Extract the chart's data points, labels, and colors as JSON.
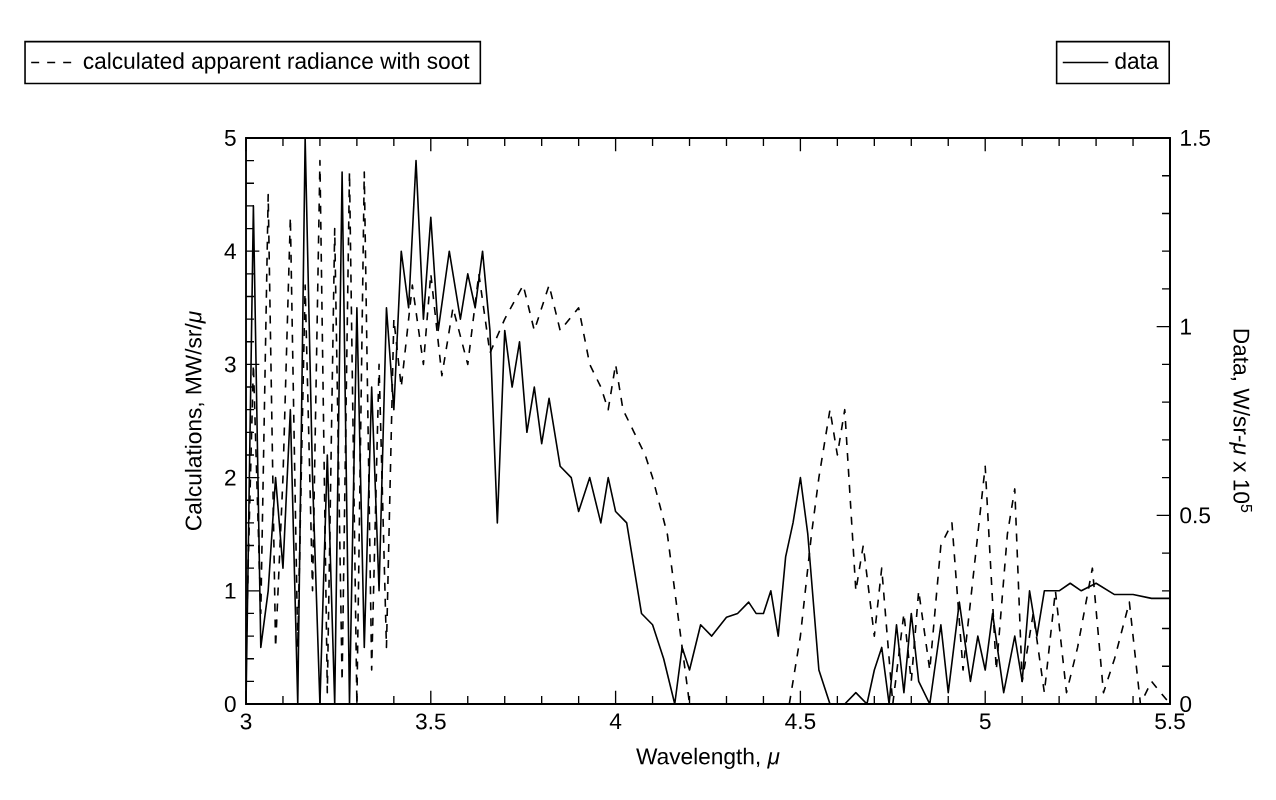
{
  "chart_data": {
    "type": "line",
    "xlabel": "Wavelength, *μ*",
    "ylabel": "Calculations,  MW/sr/*μ*",
    "y2label": "Data, W/sr-*μ* x 10$^{5}$",
    "xlim": [
      3,
      5.5
    ],
    "xticks": [
      3,
      3.5,
      4,
      4.5,
      5,
      5.5
    ],
    "ylim": [
      0,
      5
    ],
    "yticks": [
      0,
      1,
      2,
      3,
      4,
      5
    ],
    "y2lim": [
      0,
      1.5
    ],
    "y2ticks": [
      0,
      0.5,
      1,
      1.5
    ],
    "grid": false,
    "legend": "top",
    "marker": "none",
    "series": [
      {
        "name": "calculated apparent radiance with soot",
        "color": "#000000",
        "line_style": "dashed",
        "axis": "y",
        "x": [
          3.0,
          3.02,
          3.04,
          3.06,
          3.08,
          3.1,
          3.12,
          3.14,
          3.16,
          3.18,
          3.2,
          3.22,
          3.24,
          3.26,
          3.28,
          3.3,
          3.32,
          3.34,
          3.36,
          3.38,
          3.4,
          3.42,
          3.45,
          3.48,
          3.5,
          3.53,
          3.56,
          3.6,
          3.63,
          3.66,
          3.7,
          3.75,
          3.78,
          3.82,
          3.85,
          3.9,
          3.93,
          3.96,
          3.98,
          4.0,
          4.02,
          4.05,
          4.08,
          4.1,
          4.14,
          4.18,
          4.2,
          4.3,
          4.4,
          4.47,
          4.5,
          4.53,
          4.55,
          4.58,
          4.6,
          4.62,
          4.65,
          4.67,
          4.7,
          4.72,
          4.75,
          4.78,
          4.8,
          4.82,
          4.85,
          4.88,
          4.91,
          4.94,
          4.97,
          5.0,
          5.03,
          5.06,
          5.08,
          5.1,
          5.13,
          5.16,
          5.19,
          5.22,
          5.25,
          5.29,
          5.32,
          5.35,
          5.39,
          5.42,
          5.45,
          5.5
        ],
        "values": [
          0.5,
          3.0,
          0.8,
          4.5,
          0.5,
          2.0,
          4.3,
          0.5,
          3.7,
          1.0,
          4.8,
          0.1,
          4.2,
          0.2,
          4.7,
          0.0,
          4.7,
          0.3,
          3.0,
          0.5,
          3.4,
          2.8,
          3.7,
          3.0,
          3.8,
          2.9,
          3.5,
          3.0,
          3.8,
          3.1,
          3.4,
          3.7,
          3.3,
          3.7,
          3.3,
          3.5,
          3.0,
          2.8,
          2.6,
          3.0,
          2.6,
          2.4,
          2.2,
          2.0,
          1.5,
          0.5,
          0.0,
          0.0,
          0.0,
          0.0,
          0.6,
          1.5,
          2.0,
          2.6,
          2.2,
          2.6,
          1.0,
          1.4,
          0.6,
          1.2,
          0.0,
          0.8,
          0.2,
          1.0,
          0.3,
          1.4,
          1.6,
          0.3,
          1.2,
          2.1,
          0.3,
          1.5,
          1.9,
          0.2,
          0.8,
          0.1,
          1.0,
          0.1,
          0.5,
          1.2,
          0.1,
          0.4,
          0.9,
          0.0,
          0.2,
          0.0
        ]
      },
      {
        "name": "data",
        "color": "#000000",
        "line_style": "solid",
        "axis": "y2",
        "x": [
          3.0,
          3.02,
          3.04,
          3.06,
          3.08,
          3.1,
          3.12,
          3.14,
          3.16,
          3.18,
          3.2,
          3.22,
          3.24,
          3.26,
          3.28,
          3.3,
          3.32,
          3.34,
          3.36,
          3.38,
          3.4,
          3.42,
          3.44,
          3.46,
          3.48,
          3.5,
          3.52,
          3.55,
          3.58,
          3.6,
          3.62,
          3.64,
          3.66,
          3.68,
          3.7,
          3.72,
          3.74,
          3.76,
          3.78,
          3.8,
          3.82,
          3.85,
          3.88,
          3.9,
          3.93,
          3.96,
          3.98,
          4.0,
          4.03,
          4.05,
          4.07,
          4.1,
          4.13,
          4.16,
          4.18,
          4.2,
          4.23,
          4.26,
          4.3,
          4.33,
          4.36,
          4.38,
          4.4,
          4.42,
          4.44,
          4.46,
          4.48,
          4.5,
          4.52,
          4.55,
          4.58,
          4.62,
          4.65,
          4.68,
          4.7,
          4.72,
          4.74,
          4.76,
          4.78,
          4.8,
          4.82,
          4.85,
          4.88,
          4.9,
          4.93,
          4.96,
          4.98,
          5.0,
          5.02,
          5.05,
          5.08,
          5.1,
          5.12,
          5.14,
          5.16,
          5.2,
          5.23,
          5.26,
          5.3,
          5.35,
          5.4,
          5.45,
          5.5
        ],
        "values": [
          0.0,
          1.32,
          0.15,
          0.3,
          0.6,
          0.36,
          0.78,
          0.0,
          1.5,
          0.6,
          0.0,
          0.66,
          0.0,
          1.41,
          0.0,
          1.05,
          0.15,
          0.84,
          0.3,
          1.05,
          0.78,
          1.2,
          1.05,
          1.44,
          1.02,
          1.29,
          0.99,
          1.2,
          1.02,
          1.14,
          1.05,
          1.2,
          0.99,
          0.48,
          0.99,
          0.84,
          0.96,
          0.72,
          0.84,
          0.69,
          0.81,
          0.63,
          0.6,
          0.51,
          0.6,
          0.48,
          0.6,
          0.51,
          0.48,
          0.36,
          0.24,
          0.21,
          0.12,
          0.0,
          0.15,
          0.09,
          0.21,
          0.18,
          0.23,
          0.24,
          0.27,
          0.24,
          0.24,
          0.3,
          0.18,
          0.39,
          0.48,
          0.6,
          0.45,
          0.09,
          0.0,
          0.0,
          0.03,
          0.0,
          0.09,
          0.15,
          0.0,
          0.21,
          0.03,
          0.24,
          0.06,
          0.0,
          0.21,
          0.03,
          0.27,
          0.06,
          0.18,
          0.09,
          0.24,
          0.03,
          0.18,
          0.06,
          0.3,
          0.18,
          0.3,
          0.3,
          0.32,
          0.3,
          0.32,
          0.29,
          0.29,
          0.28,
          0.28
        ]
      }
    ]
  }
}
